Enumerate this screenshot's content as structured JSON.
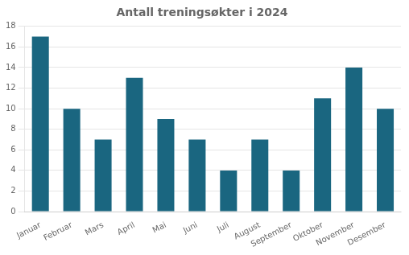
{
  "chart_data": {
    "type": "bar",
    "title": "Antall treningsøkter i 2024",
    "categories": [
      "Januar",
      "Februar",
      "Mars",
      "April",
      "Mai",
      "Juni",
      "Juli",
      "August",
      "September",
      "Oktober",
      "November",
      "Desember"
    ],
    "values": [
      17,
      10,
      7,
      13,
      9,
      7,
      4,
      7,
      4,
      11,
      14,
      10
    ],
    "color": "#1a6680",
    "ylim": [
      0,
      18
    ],
    "yticks": [
      0,
      2,
      4,
      6,
      8,
      10,
      12,
      14,
      16,
      18
    ],
    "grid": true
  }
}
